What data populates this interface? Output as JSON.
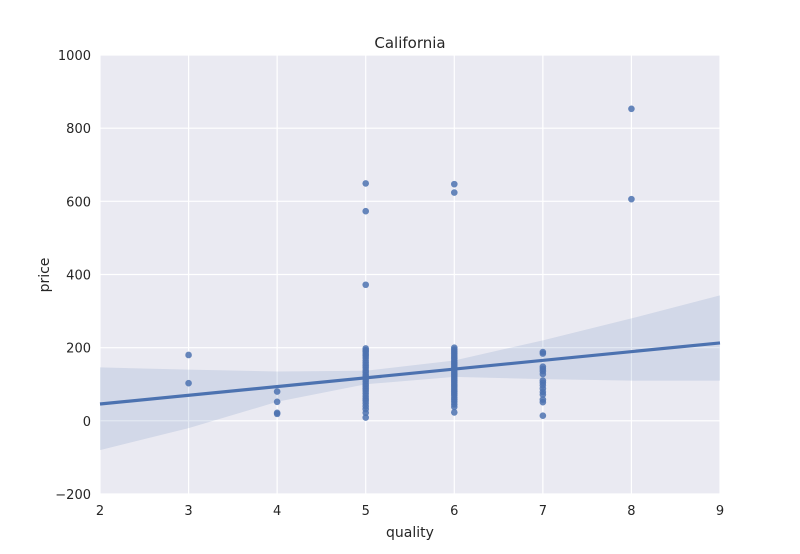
{
  "chart_data": {
    "type": "scatter",
    "title": "California",
    "xlabel": "quality",
    "ylabel": "price",
    "xlim": [
      2,
      9
    ],
    "ylim": [
      -200,
      1000
    ],
    "xticks": [
      2,
      3,
      4,
      5,
      6,
      7,
      8,
      9
    ],
    "yticks": [
      -200,
      0,
      200,
      400,
      600,
      800,
      1000
    ],
    "xtick_labels": [
      "2",
      "3",
      "4",
      "5",
      "6",
      "7",
      "8",
      "9"
    ],
    "ytick_labels": [
      "−200",
      "0",
      "200",
      "400",
      "600",
      "800",
      "1000"
    ],
    "grid": true,
    "colors": {
      "background": "#EAEAF2",
      "grid": "#FFFFFF",
      "points": "#4C72B0",
      "line": "#4C72B0",
      "band": "#4C72B0"
    },
    "series": [
      {
        "points": [
          [
            3,
            180
          ],
          [
            3,
            103
          ],
          [
            4,
            80
          ],
          [
            4,
            52
          ],
          [
            4,
            22
          ],
          [
            4,
            19
          ],
          [
            5,
            649
          ],
          [
            5,
            573
          ],
          [
            5,
            372
          ],
          [
            5,
            198
          ],
          [
            5,
            193
          ],
          [
            5,
            189
          ],
          [
            5,
            183
          ],
          [
            5,
            178
          ],
          [
            5,
            172
          ],
          [
            5,
            165
          ],
          [
            5,
            158
          ],
          [
            5,
            151
          ],
          [
            5,
            145
          ],
          [
            5,
            138
          ],
          [
            5,
            132
          ],
          [
            5,
            125
          ],
          [
            5,
            120
          ],
          [
            5,
            114
          ],
          [
            5,
            108
          ],
          [
            5,
            101
          ],
          [
            5,
            95
          ],
          [
            5,
            88
          ],
          [
            5,
            82
          ],
          [
            5,
            75
          ],
          [
            5,
            68
          ],
          [
            5,
            61
          ],
          [
            5,
            55
          ],
          [
            5,
            48
          ],
          [
            5,
            40
          ],
          [
            5,
            32
          ],
          [
            5,
            22
          ],
          [
            5,
            9
          ],
          [
            6,
            647
          ],
          [
            6,
            624
          ],
          [
            6,
            200
          ],
          [
            6,
            195
          ],
          [
            6,
            190
          ],
          [
            6,
            185
          ],
          [
            6,
            180
          ],
          [
            6,
            175
          ],
          [
            6,
            170
          ],
          [
            6,
            165
          ],
          [
            6,
            160
          ],
          [
            6,
            155
          ],
          [
            6,
            150
          ],
          [
            6,
            145
          ],
          [
            6,
            140
          ],
          [
            6,
            135
          ],
          [
            6,
            130
          ],
          [
            6,
            125
          ],
          [
            6,
            120
          ],
          [
            6,
            115
          ],
          [
            6,
            110
          ],
          [
            6,
            105
          ],
          [
            6,
            100
          ],
          [
            6,
            95
          ],
          [
            6,
            90
          ],
          [
            6,
            85
          ],
          [
            6,
            80
          ],
          [
            6,
            75
          ],
          [
            6,
            70
          ],
          [
            6,
            64
          ],
          [
            6,
            58
          ],
          [
            6,
            52
          ],
          [
            6,
            45
          ],
          [
            6,
            38
          ],
          [
            6,
            23
          ],
          [
            7,
            188
          ],
          [
            7,
            184
          ],
          [
            7,
            148
          ],
          [
            7,
            142
          ],
          [
            7,
            136
          ],
          [
            7,
            128
          ],
          [
            7,
            110
          ],
          [
            7,
            104
          ],
          [
            7,
            97
          ],
          [
            7,
            88
          ],
          [
            7,
            79
          ],
          [
            7,
            72
          ],
          [
            7,
            58
          ],
          [
            7,
            51
          ],
          [
            7,
            14
          ],
          [
            8,
            853
          ],
          [
            8,
            606
          ]
        ]
      }
    ],
    "regression": {
      "x": [
        2,
        9
      ],
      "y": [
        46,
        213
      ]
    },
    "ci_band": {
      "x": [
        2,
        3,
        4,
        5,
        6,
        7,
        8,
        9
      ],
      "upper": [
        146,
        140,
        135,
        137,
        165,
        220,
        280,
        343
      ],
      "lower": [
        -80,
        -20,
        52,
        100,
        120,
        114,
        110,
        110
      ]
    }
  }
}
